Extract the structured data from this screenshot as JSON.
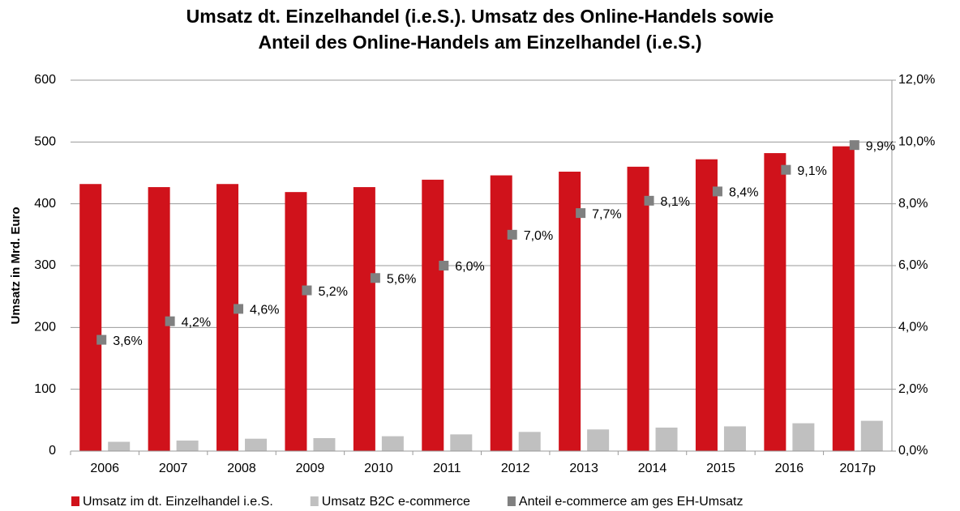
{
  "chart_data": {
    "type": "bar",
    "title": [
      "Umsatz dt. Einzelhandel (i.e.S.). Umsatz des Online-Handels sowie",
      "Anteil des Online-Handels am Einzelhandel (i.e.S.)"
    ],
    "y_label": "Umsatz in Mrd. Euro",
    "categories": [
      "2006",
      "2007",
      "2008",
      "2009",
      "2010",
      "2011",
      "2012",
      "2013",
      "2014",
      "2015",
      "2016",
      "2017p"
    ],
    "series": [
      {
        "name": "Umsatz im dt. Einzelhandel i.e.S.",
        "type": "bar",
        "color": "#d0121b",
        "values": [
          432,
          427,
          432,
          419,
          427,
          439,
          446,
          452,
          460,
          472,
          482,
          493
        ]
      },
      {
        "name": "Umsatz B2C e-commerce",
        "type": "bar",
        "color": "#c0c0c0",
        "values": [
          15,
          17,
          20,
          21,
          24,
          27,
          31,
          35,
          38,
          40,
          45,
          49
        ]
      },
      {
        "name": "Anteil e-commerce am ges EH-Umsatz",
        "type": "scatter",
        "axis": "y2",
        "color": "#808080",
        "values": [
          3.6,
          4.2,
          4.6,
          5.2,
          5.6,
          6.0,
          7.0,
          7.7,
          8.1,
          8.4,
          9.1,
          9.9
        ],
        "value_labels": [
          "3,6%",
          "4,2%",
          "4,6%",
          "5,2%",
          "5,6%",
          "6,0%",
          "7,0%",
          "7,7%",
          "8,1%",
          "8,4%",
          "9,1%",
          "9,9%"
        ]
      }
    ],
    "ylim": [
      0,
      600
    ],
    "yticks": [
      0,
      100,
      200,
      300,
      400,
      500,
      600
    ],
    "y2lim": [
      0,
      12
    ],
    "y2ticks": [
      {
        "value": 0,
        "label": "0,0%"
      },
      {
        "value": 2,
        "label": "2,0%"
      },
      {
        "value": 4,
        "label": "4,0%"
      },
      {
        "value": 6,
        "label": "6,0%"
      },
      {
        "value": 8,
        "label": "8,0%"
      },
      {
        "value": 10,
        "label": "10,0%"
      },
      {
        "value": 12,
        "label": "12,0%"
      }
    ],
    "grid": true,
    "legend": "bottom"
  }
}
